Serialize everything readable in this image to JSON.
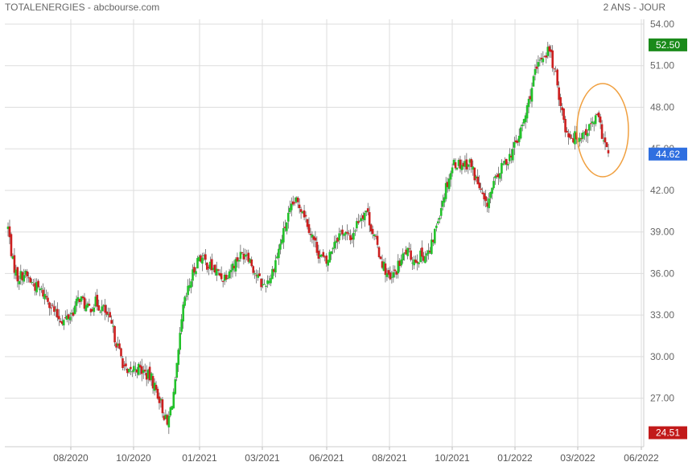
{
  "header": {
    "title": "TOTALENERGIES - abcbourse.com",
    "period": "2 ANS - JOUR"
  },
  "colors": {
    "up_candle": "#22c22a",
    "down_candle": "#cc1f1f",
    "grid": "#dddddd",
    "annotation": "#f0a040",
    "high_badge": "#1a8a1a",
    "last_badge": "#2f6fe0",
    "low_badge": "#c21a1a"
  },
  "chart_data": {
    "type": "candlestick",
    "title": "TOTALENERGIES",
    "ylim": [
      23.5,
      54.0
    ],
    "y_ticks": [
      "54.00",
      "51.00",
      "48.00",
      "45.00",
      "42.00",
      "39.00",
      "36.00",
      "33.00",
      "30.00",
      "27.00"
    ],
    "x_ticks": [
      "08/2020",
      "10/2020",
      "01/2021",
      "03/2021",
      "06/2021",
      "08/2021",
      "10/2021",
      "01/2022",
      "03/2022",
      "06/2022"
    ],
    "grid": true,
    "badges": {
      "high": "52.50",
      "last": "44.62",
      "low": "24.51"
    },
    "annotation": "circle around March 2022 range",
    "price_path": [
      [
        0,
        39.3
      ],
      [
        3,
        36.8
      ],
      [
        6,
        35.7
      ],
      [
        10,
        36.0
      ],
      [
        15,
        35.3
      ],
      [
        20,
        34.8
      ],
      [
        25,
        34.2
      ],
      [
        30,
        33.0
      ],
      [
        35,
        32.6
      ],
      [
        40,
        33.1
      ],
      [
        45,
        34.3
      ],
      [
        50,
        33.4
      ],
      [
        55,
        33.9
      ],
      [
        60,
        33.4
      ],
      [
        65,
        32.2
      ],
      [
        70,
        30.3
      ],
      [
        75,
        28.6
      ],
      [
        80,
        29.3
      ],
      [
        85,
        28.9
      ],
      [
        90,
        28.4
      ],
      [
        95,
        27.0
      ],
      [
        100,
        25.0
      ],
      [
        105,
        28.0
      ],
      [
        110,
        33.5
      ],
      [
        115,
        35.6
      ],
      [
        120,
        37.3
      ],
      [
        125,
        36.7
      ],
      [
        130,
        36.2
      ],
      [
        135,
        35.7
      ],
      [
        140,
        36.4
      ],
      [
        145,
        37.2
      ],
      [
        150,
        37.6
      ],
      [
        155,
        36.1
      ],
      [
        160,
        35.1
      ],
      [
        165,
        35.8
      ],
      [
        170,
        37.7
      ],
      [
        175,
        39.8
      ],
      [
        180,
        41.2
      ],
      [
        185,
        40.7
      ],
      [
        190,
        39.0
      ],
      [
        195,
        37.5
      ],
      [
        200,
        36.7
      ],
      [
        205,
        38.4
      ],
      [
        210,
        39.1
      ],
      [
        215,
        38.4
      ],
      [
        220,
        39.9
      ],
      [
        225,
        40.6
      ],
      [
        230,
        38.6
      ],
      [
        235,
        36.8
      ],
      [
        240,
        35.4
      ],
      [
        245,
        36.5
      ],
      [
        250,
        37.6
      ],
      [
        255,
        37.0
      ],
      [
        260,
        37.3
      ],
      [
        265,
        37.5
      ],
      [
        270,
        40.0
      ],
      [
        275,
        42.3
      ],
      [
        280,
        44.0
      ],
      [
        285,
        43.9
      ],
      [
        290,
        44.0
      ],
      [
        295,
        42.5
      ],
      [
        300,
        40.8
      ],
      [
        305,
        42.4
      ],
      [
        310,
        43.6
      ],
      [
        315,
        44.5
      ],
      [
        320,
        45.6
      ],
      [
        325,
        47.4
      ],
      [
        330,
        50.0
      ],
      [
        335,
        51.6
      ],
      [
        340,
        52.2
      ],
      [
        345,
        49.6
      ],
      [
        350,
        46.4
      ],
      [
        355,
        45.8
      ],
      [
        360,
        46.0
      ],
      [
        365,
        46.5
      ],
      [
        370,
        47.3
      ],
      [
        375,
        45.3
      ],
      [
        377,
        44.6
      ]
    ],
    "candle_count": 378
  }
}
